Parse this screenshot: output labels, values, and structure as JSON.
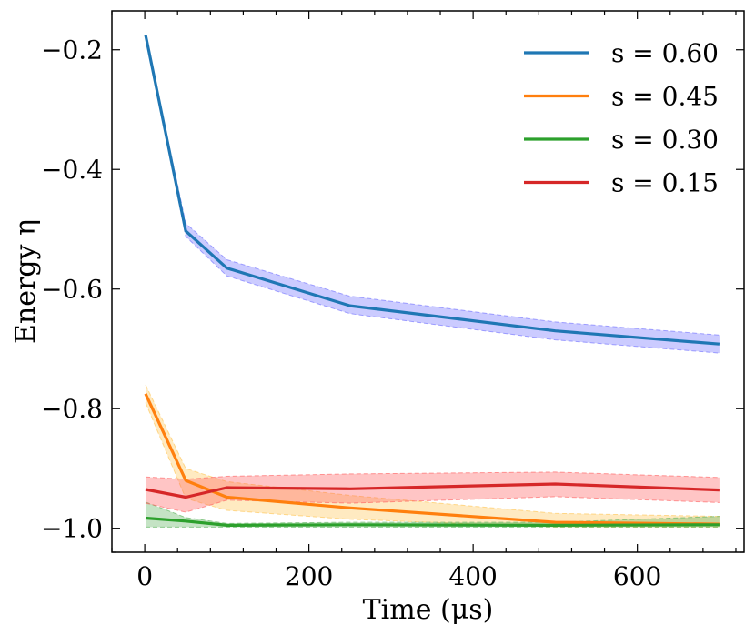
{
  "chart_data": {
    "type": "line",
    "title": "",
    "xlabel": "Time (μs)",
    "ylabel": "Energy η",
    "xlim": [
      -40,
      730
    ],
    "ylim": [
      -1.04,
      -0.135
    ],
    "xticks": [
      0,
      200,
      400,
      600
    ],
    "xtick_labels": [
      "0",
      "200",
      "400",
      "600"
    ],
    "yticks": [
      -0.2,
      -0.4,
      -0.6,
      -0.8,
      -1.0
    ],
    "ytick_labels": [
      "−0.2",
      "−0.4",
      "−0.6",
      "−0.8",
      "−1.0"
    ],
    "grid": false,
    "legend_position": "top-right",
    "x": [
      1,
      50,
      100,
      250,
      500,
      700
    ],
    "series": [
      {
        "name": "s = 0.60",
        "color": "#1f77b4",
        "band_color": "#6a6aff",
        "values": [
          -0.175,
          -0.503,
          -0.565,
          -0.628,
          -0.67,
          -0.692
        ],
        "lower": [
          -0.175,
          -0.512,
          -0.578,
          -0.641,
          -0.685,
          -0.707
        ],
        "upper": [
          -0.175,
          -0.49,
          -0.551,
          -0.612,
          -0.655,
          -0.677
        ]
      },
      {
        "name": "s = 0.45",
        "color": "#ff7f0e",
        "band_color": "#ffc34d",
        "values": [
          -0.775,
          -0.92,
          -0.948,
          -0.966,
          -0.99,
          -0.993
        ],
        "lower": [
          -0.79,
          -0.95,
          -0.97,
          -0.985,
          -0.998,
          -0.998
        ],
        "upper": [
          -0.76,
          -0.9,
          -0.922,
          -0.945,
          -0.975,
          -0.98
        ]
      },
      {
        "name": "s = 0.30",
        "color": "#2ca02c",
        "band_color": "#55b055",
        "values": [
          -0.983,
          -0.988,
          -0.995,
          -0.994,
          -0.995,
          -0.994
        ],
        "lower": [
          -0.998,
          -0.998,
          -0.998,
          -0.998,
          -0.998,
          -0.998
        ],
        "upper": [
          -0.956,
          -0.982,
          -0.992,
          -0.99,
          -0.99,
          -0.98
        ]
      },
      {
        "name": "s = 0.15",
        "color": "#d62728",
        "band_color": "#ff5a5a",
        "values": [
          -0.935,
          -0.948,
          -0.932,
          -0.934,
          -0.926,
          -0.936
        ],
        "lower": [
          -0.958,
          -0.973,
          -0.953,
          -0.958,
          -0.947,
          -0.957
        ],
        "upper": [
          -0.914,
          -0.918,
          -0.913,
          -0.909,
          -0.906,
          -0.915
        ]
      }
    ]
  }
}
